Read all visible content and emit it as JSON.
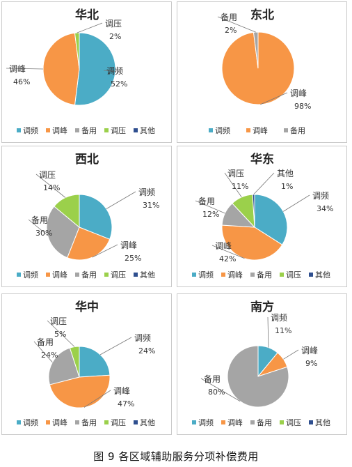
{
  "colors": {
    "调频": "#4bacc6",
    "调峰": "#f79646",
    "备用": "#a5a5a5",
    "调压": "#9bd04b",
    "其他": "#2f4f8f"
  },
  "caption": "图 9   各区域辅助服务分项补偿费用",
  "chart_data": [
    {
      "type": "pie",
      "title": "华北",
      "legend": [
        "调频",
        "调峰",
        "备用",
        "调压",
        "其他"
      ],
      "slices": [
        {
          "label": "调频",
          "value": 52,
          "pct_text": "52%"
        },
        {
          "label": "调峰",
          "value": 46,
          "pct_text": "46%"
        },
        {
          "label": "调压",
          "value": 2,
          "pct_text": "2%"
        }
      ]
    },
    {
      "type": "pie",
      "title": "东北",
      "legend": [
        "调频",
        "调峰",
        "备用"
      ],
      "slices": [
        {
          "label": "调峰",
          "value": 98,
          "pct_text": "98%"
        },
        {
          "label": "备用",
          "value": 2,
          "pct_text": "2%"
        }
      ]
    },
    {
      "type": "pie",
      "title": "西北",
      "legend": [
        "调频",
        "调峰",
        "备用",
        "调压",
        "其他"
      ],
      "slices": [
        {
          "label": "调频",
          "value": 31,
          "pct_text": "31%"
        },
        {
          "label": "调峰",
          "value": 25,
          "pct_text": "25%"
        },
        {
          "label": "备用",
          "value": 30,
          "pct_text": "30%"
        },
        {
          "label": "调压",
          "value": 14,
          "pct_text": "14%"
        }
      ]
    },
    {
      "type": "pie",
      "title": "华东",
      "legend": [
        "调频",
        "调峰",
        "备用",
        "调压",
        "其他"
      ],
      "slices": [
        {
          "label": "调频",
          "value": 34,
          "pct_text": "34%"
        },
        {
          "label": "调峰",
          "value": 42,
          "pct_text": "42%"
        },
        {
          "label": "备用",
          "value": 12,
          "pct_text": "12%"
        },
        {
          "label": "调压",
          "value": 11,
          "pct_text": "11%"
        },
        {
          "label": "其他",
          "value": 1,
          "pct_text": "1%"
        }
      ]
    },
    {
      "type": "pie",
      "title": "华中",
      "legend": [
        "调频",
        "调峰",
        "备用",
        "调压",
        "其他"
      ],
      "slices": [
        {
          "label": "调频",
          "value": 24,
          "pct_text": "24%"
        },
        {
          "label": "调峰",
          "value": 47,
          "pct_text": "47%"
        },
        {
          "label": "备用",
          "value": 24,
          "pct_text": "24%"
        },
        {
          "label": "调压",
          "value": 5,
          "pct_text": "5%"
        }
      ]
    },
    {
      "type": "pie",
      "title": "南方",
      "legend": [
        "调频",
        "调峰",
        "备用",
        "调压",
        "其他"
      ],
      "slices": [
        {
          "label": "调频",
          "value": 11,
          "pct_text": "11%"
        },
        {
          "label": "调峰",
          "value": 9,
          "pct_text": "9%"
        },
        {
          "label": "备用",
          "value": 80,
          "pct_text": "80%"
        }
      ]
    }
  ]
}
